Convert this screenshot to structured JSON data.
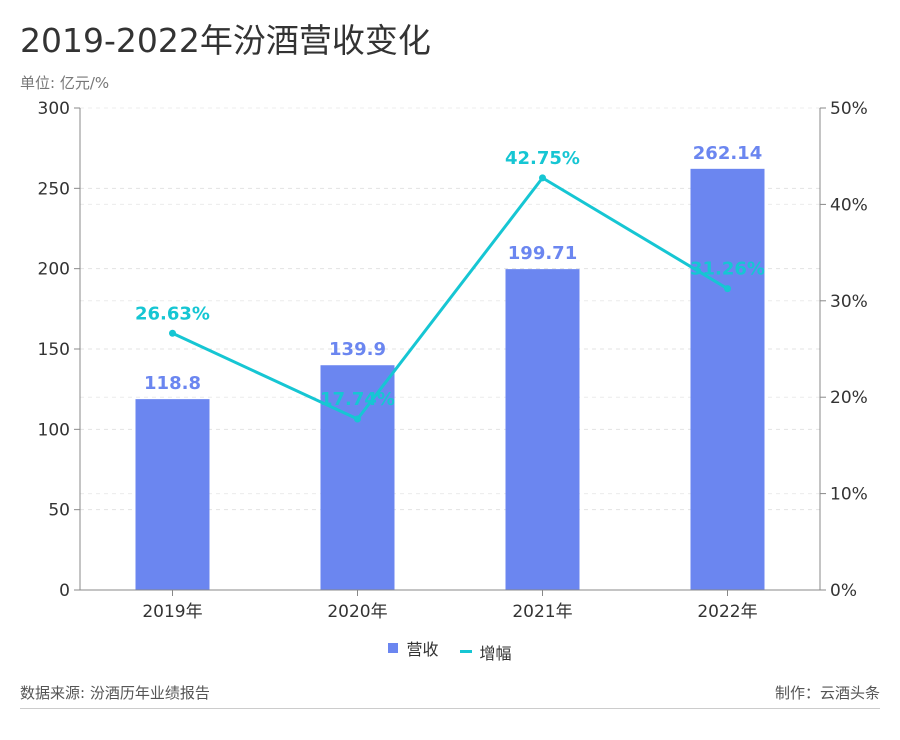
{
  "title": "2019-2022年汾酒营收变化",
  "unit": "单位: 亿元/%",
  "source": "数据来源: 汾酒历年业绩报告",
  "credit": "制作：云酒头条",
  "chart_data": {
    "type": "bar",
    "categories": [
      "2019年",
      "2020年",
      "2021年",
      "2022年"
    ],
    "series": [
      {
        "name": "营收",
        "type": "bar",
        "axis": "left",
        "values": [
          118.8,
          139.9,
          199.71,
          262.14
        ],
        "labels": [
          "118.8",
          "139.9",
          "199.71",
          "262.14"
        ],
        "color": "#6b86f0"
      },
      {
        "name": "增幅",
        "type": "line",
        "axis": "right",
        "values": [
          26.63,
          17.74,
          42.75,
          31.26
        ],
        "labels": [
          "26.63%",
          "17.74%",
          "42.75%",
          "31.26%"
        ],
        "color": "#16c6d3"
      }
    ],
    "y_left": {
      "min": 0,
      "max": 300,
      "ticks": [
        "0",
        "50",
        "100",
        "150",
        "200",
        "250",
        "300"
      ]
    },
    "y_right": {
      "min": 0,
      "max": 50,
      "ticks": [
        "0%",
        "10%",
        "20%",
        "30%",
        "40%",
        "50%"
      ]
    },
    "grid": true,
    "legend_position": "bottom"
  }
}
